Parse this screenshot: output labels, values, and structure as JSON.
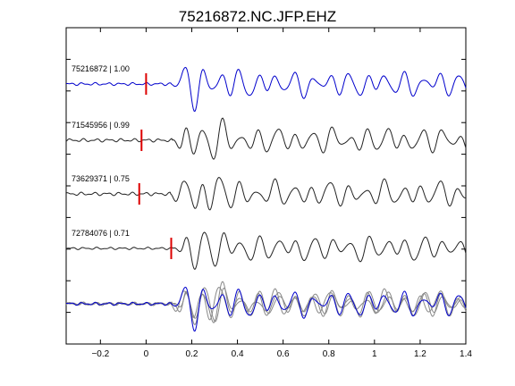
{
  "chart_data": {
    "type": "line",
    "title": "75216872.NC.JFP.EHZ",
    "xlabel": "",
    "ylabel": "",
    "xlim": [
      -0.35,
      1.4
    ],
    "x_ticks": [
      -0.2,
      0,
      0.2,
      0.4,
      0.6,
      0.8,
      1,
      1.2,
      1.4
    ],
    "x_tick_labels": [
      "−0.2",
      "0",
      "0.2",
      "0.4",
      "0.6",
      "0.8",
      "1",
      "1.2",
      "1.4"
    ],
    "y_ticks_count": 9,
    "grid": false,
    "legend": "none",
    "colors": {
      "reference": "#0000cc",
      "trace": "#222222",
      "stack": "#888888",
      "pick": "#dd0000"
    },
    "series": [
      {
        "name": "75216872 | 1.00",
        "id": "75216872",
        "cc": 1.0,
        "pick_time": 0.0,
        "lag": 0.0,
        "seed": 3,
        "reference": true
      },
      {
        "name": "71545956 | 0.99",
        "id": "71545956",
        "cc": 0.99,
        "pick_time": -0.02,
        "lag": 0.004,
        "seed": 11,
        "reference": false
      },
      {
        "name": "73629371 | 0.75",
        "id": "73629371",
        "cc": 0.75,
        "pick_time": -0.03,
        "lag": -0.004,
        "seed": 23,
        "reference": false
      },
      {
        "name": "72784076 | 0.71",
        "id": "72784076",
        "cc": 0.71,
        "pick_time": 0.11,
        "lag": 0.008,
        "seed": 37,
        "reference": false
      }
    ],
    "stack": {
      "name": "overlay",
      "series_overlaid": 4
    }
  }
}
